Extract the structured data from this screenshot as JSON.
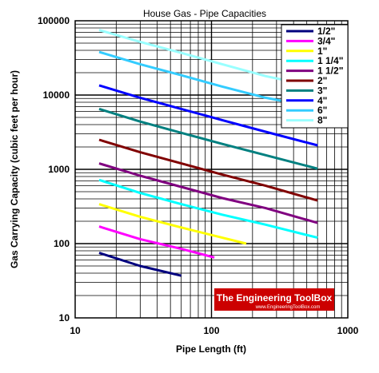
{
  "chart_data": {
    "type": "line",
    "title": "House Gas - Pipe Capacities",
    "xlabel": "Pipe Length (ft)",
    "ylabel": "Gas Carrying Capacity (cubic feet per hour)",
    "x_scale": "log",
    "y_scale": "log",
    "xlim": [
      10,
      1000
    ],
    "ylim": [
      10,
      100000
    ],
    "x_ticks": [
      "10",
      "100",
      "1000"
    ],
    "y_ticks": [
      "10",
      "100",
      "1000",
      "10000",
      "100000"
    ],
    "grid": true,
    "legend_position": "top-right",
    "series": [
      {
        "name": "1/2\"",
        "color": "#00007f",
        "points": [
          [
            15,
            75
          ],
          [
            30,
            50
          ],
          [
            60,
            37
          ]
        ]
      },
      {
        "name": "3/4\"",
        "color": "#ff00ff",
        "points": [
          [
            15,
            170
          ],
          [
            30,
            115
          ],
          [
            60,
            85
          ],
          [
            105,
            65
          ]
        ]
      },
      {
        "name": "1\"",
        "color": "#ffff00",
        "points": [
          [
            15,
            340
          ],
          [
            30,
            230
          ],
          [
            60,
            165
          ],
          [
            120,
            120
          ],
          [
            180,
            100
          ]
        ]
      },
      {
        "name": "1 1/4\"",
        "color": "#00ffff",
        "points": [
          [
            15,
            720
          ],
          [
            30,
            480
          ],
          [
            60,
            340
          ],
          [
            120,
            245
          ],
          [
            250,
            180
          ],
          [
            600,
            120
          ]
        ]
      },
      {
        "name": "1 1/2\"",
        "color": "#800080",
        "points": [
          [
            15,
            1200
          ],
          [
            30,
            820
          ],
          [
            60,
            580
          ],
          [
            120,
            410
          ],
          [
            250,
            300
          ],
          [
            600,
            190
          ]
        ]
      },
      {
        "name": "2\"",
        "color": "#800000",
        "points": [
          [
            15,
            2500
          ],
          [
            30,
            1700
          ],
          [
            60,
            1200
          ],
          [
            120,
            850
          ],
          [
            250,
            600
          ],
          [
            600,
            380
          ]
        ]
      },
      {
        "name": "3\"",
        "color": "#008080",
        "points": [
          [
            15,
            6500
          ],
          [
            30,
            4400
          ],
          [
            60,
            3100
          ],
          [
            120,
            2200
          ],
          [
            250,
            1550
          ],
          [
            600,
            1020
          ]
        ]
      },
      {
        "name": "4\"",
        "color": "#0000ff",
        "points": [
          [
            15,
            13500
          ],
          [
            30,
            9200
          ],
          [
            60,
            6500
          ],
          [
            120,
            4600
          ],
          [
            250,
            3200
          ],
          [
            600,
            2100
          ]
        ]
      },
      {
        "name": "6\"",
        "color": "#33ccff",
        "points": [
          [
            15,
            38000
          ],
          [
            30,
            26000
          ],
          [
            60,
            18500
          ],
          [
            120,
            13000
          ],
          [
            250,
            9200
          ],
          [
            400,
            7800
          ]
        ]
      },
      {
        "name": "8\"",
        "color": "#99ffff",
        "points": [
          [
            15,
            75000
          ],
          [
            30,
            52000
          ],
          [
            60,
            37000
          ],
          [
            120,
            26000
          ],
          [
            250,
            18000
          ],
          [
            400,
            15000
          ]
        ]
      }
    ]
  },
  "watermark": {
    "title": "The Engineering ToolBox",
    "subtitle": "www.EngineeringToolBox.com"
  }
}
